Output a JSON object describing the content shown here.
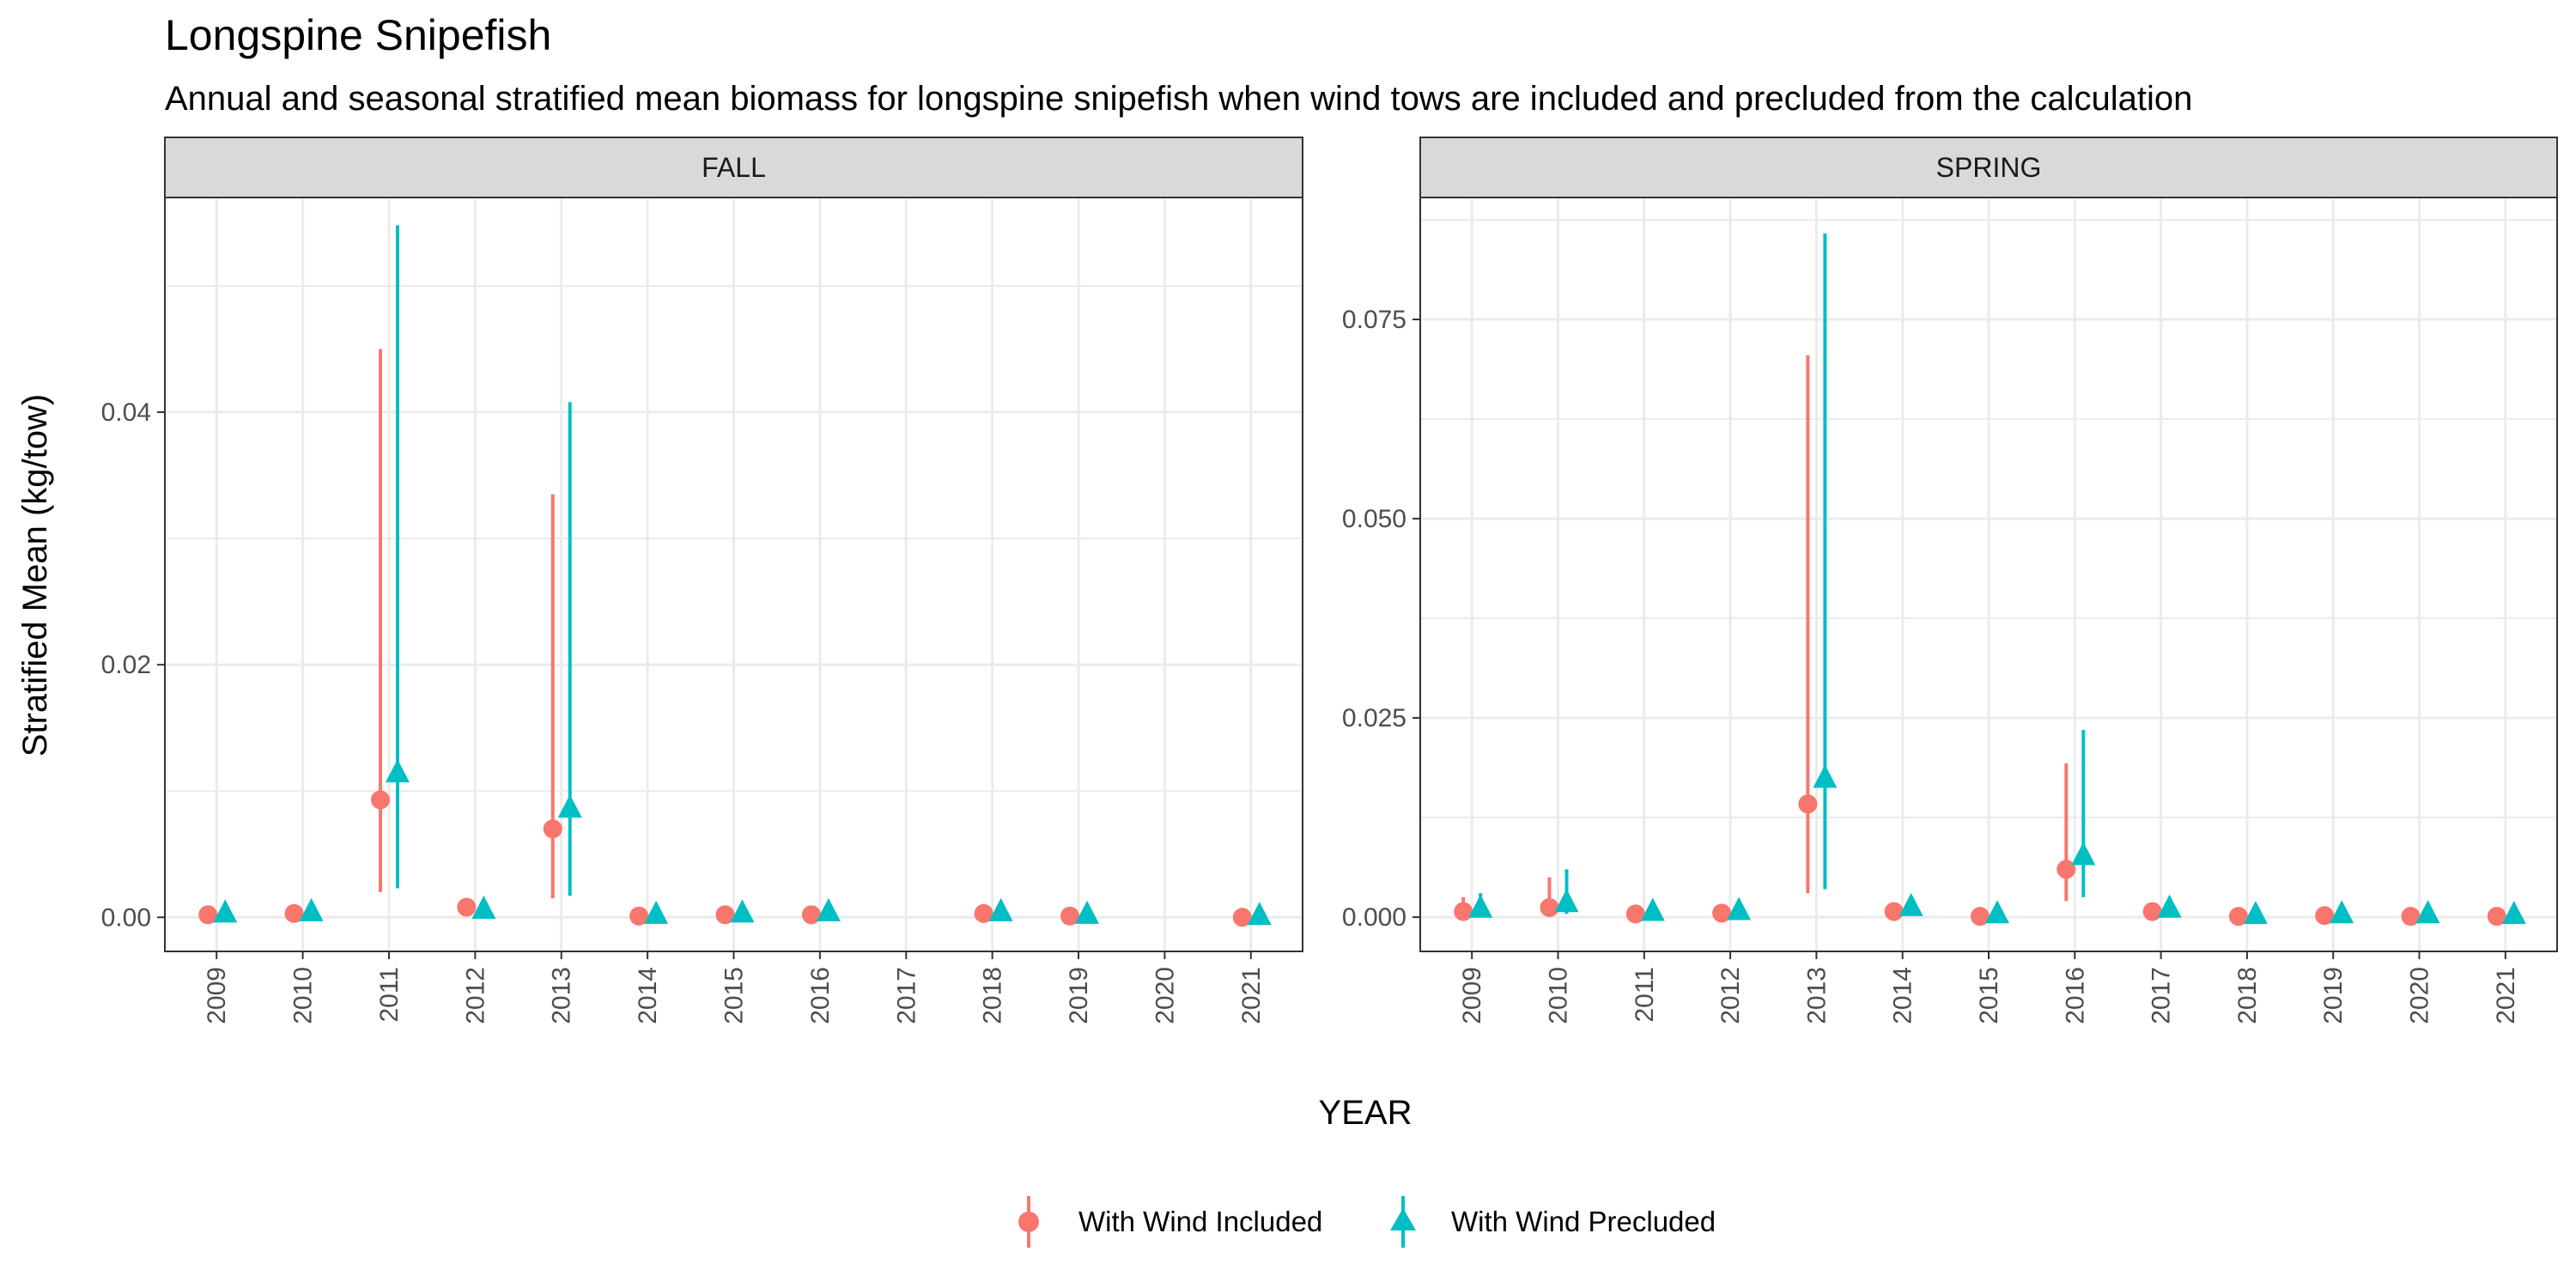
{
  "title": "Longspine Snipefish",
  "subtitle": "Annual and seasonal stratified mean biomass for longspine snipefish when wind tows are included and precluded from the calculation",
  "colors": {
    "included": "#F8766D",
    "precluded": "#00BFC4",
    "strip_fill": "#D9D9D9",
    "grid": "#EBEBEB"
  },
  "chart_data": [
    {
      "type": "scatter",
      "facet": "FALL",
      "xlabel": "YEAR",
      "ylabel": "Stratified Mean (kg/tow)",
      "categories": [
        "2009",
        "2010",
        "2011",
        "2012",
        "2013",
        "2014",
        "2015",
        "2016",
        "2017",
        "2018",
        "2019",
        "2020",
        "2021"
      ],
      "ylim": [
        -0.0027,
        0.057
      ],
      "yticks": [
        0.0,
        0.02,
        0.04
      ],
      "ytick_labels": [
        "0.00",
        "0.02",
        "0.04"
      ],
      "series": [
        {
          "name": "With Wind Included",
          "marker": "circle",
          "points": [
            {
              "x": "2009",
              "y": 0.0002,
              "lo": 0.0001,
              "hi": 0.0003
            },
            {
              "x": "2010",
              "y": 0.0003,
              "lo": 0.0002,
              "hi": 0.0004
            },
            {
              "x": "2011",
              "y": 0.0093,
              "lo": 0.002,
              "hi": 0.045
            },
            {
              "x": "2012",
              "y": 0.0008,
              "lo": 0.0005,
              "hi": 0.0011
            },
            {
              "x": "2013",
              "y": 0.007,
              "lo": 0.0015,
              "hi": 0.0335
            },
            {
              "x": "2014",
              "y": 0.0001,
              "lo": 0.0,
              "hi": 0.0002
            },
            {
              "x": "2015",
              "y": 0.0002,
              "lo": 0.0001,
              "hi": 0.0003
            },
            {
              "x": "2016",
              "y": 0.0002,
              "lo": 0.0001,
              "hi": 0.0003
            },
            {
              "x": "2018",
              "y": 0.0003,
              "lo": 0.0002,
              "hi": 0.0004
            },
            {
              "x": "2019",
              "y": 0.0001,
              "lo": 0.0,
              "hi": 0.0002
            },
            {
              "x": "2021",
              "y": 0.0,
              "lo": 0.0,
              "hi": 0.0001
            }
          ]
        },
        {
          "name": "With Wind Precluded",
          "marker": "triangle",
          "points": [
            {
              "x": "2009",
              "y": 0.0002,
              "lo": 0.0001,
              "hi": 0.0003
            },
            {
              "x": "2010",
              "y": 0.0003,
              "lo": 0.0002,
              "hi": 0.0004
            },
            {
              "x": "2011",
              "y": 0.0113,
              "lo": 0.0023,
              "hi": 0.0548
            },
            {
              "x": "2012",
              "y": 0.0005,
              "lo": 0.0003,
              "hi": 0.0007
            },
            {
              "x": "2013",
              "y": 0.0085,
              "lo": 0.0017,
              "hi": 0.0408
            },
            {
              "x": "2014",
              "y": 0.0001,
              "lo": 0.0,
              "hi": 0.0002
            },
            {
              "x": "2015",
              "y": 0.0002,
              "lo": 0.0001,
              "hi": 0.0003
            },
            {
              "x": "2016",
              "y": 0.0003,
              "lo": 0.0002,
              "hi": 0.0004
            },
            {
              "x": "2018",
              "y": 0.0003,
              "lo": 0.0002,
              "hi": 0.0004
            },
            {
              "x": "2019",
              "y": 0.0001,
              "lo": 0.0,
              "hi": 0.0002
            },
            {
              "x": "2021",
              "y": 0.0,
              "lo": 0.0,
              "hi": 0.0001
            }
          ]
        }
      ]
    },
    {
      "type": "scatter",
      "facet": "SPRING",
      "xlabel": "YEAR",
      "ylabel": "Stratified Mean (kg/tow)",
      "categories": [
        "2009",
        "2010",
        "2011",
        "2012",
        "2013",
        "2014",
        "2015",
        "2016",
        "2017",
        "2018",
        "2019",
        "2020",
        "2021"
      ],
      "ylim": [
        -0.0043,
        0.0903
      ],
      "yticks": [
        0.0,
        0.025,
        0.05,
        0.075
      ],
      "ytick_labels": [
        "0.000",
        "0.025",
        "0.050",
        "0.075"
      ],
      "series": [
        {
          "name": "With Wind Included",
          "marker": "circle",
          "points": [
            {
              "x": "2009",
              "y": 0.0007,
              "lo": 0.0002,
              "hi": 0.0025
            },
            {
              "x": "2010",
              "y": 0.0012,
              "lo": 0.0003,
              "hi": 0.005
            },
            {
              "x": "2011",
              "y": 0.0004,
              "lo": 0.0002,
              "hi": 0.0008
            },
            {
              "x": "2012",
              "y": 0.0005,
              "lo": 0.0002,
              "hi": 0.0009
            },
            {
              "x": "2013",
              "y": 0.0142,
              "lo": 0.003,
              "hi": 0.0705
            },
            {
              "x": "2014",
              "y": 0.0007,
              "lo": 0.0003,
              "hi": 0.0015
            },
            {
              "x": "2015",
              "y": 0.0001,
              "lo": 0.0,
              "hi": 0.0003
            },
            {
              "x": "2016",
              "y": 0.006,
              "lo": 0.002,
              "hi": 0.0193
            },
            {
              "x": "2017",
              "y": 0.0007,
              "lo": 0.0003,
              "hi": 0.0014
            },
            {
              "x": "2018",
              "y": 0.0001,
              "lo": 0.0,
              "hi": 0.0002
            },
            {
              "x": "2019",
              "y": 0.0002,
              "lo": 0.0001,
              "hi": 0.0003
            },
            {
              "x": "2020",
              "y": 0.0001,
              "lo": 0.0,
              "hi": 0.0002
            },
            {
              "x": "2021",
              "y": 0.0001,
              "lo": 0.0,
              "hi": 0.0002
            }
          ]
        },
        {
          "name": "With Wind Precluded",
          "marker": "triangle",
          "points": [
            {
              "x": "2009",
              "y": 0.0009,
              "lo": 0.0002,
              "hi": 0.003
            },
            {
              "x": "2010",
              "y": 0.0016,
              "lo": 0.0004,
              "hi": 0.006
            },
            {
              "x": "2011",
              "y": 0.0005,
              "lo": 0.0002,
              "hi": 0.0009
            },
            {
              "x": "2012",
              "y": 0.0006,
              "lo": 0.0002,
              "hi": 0.001
            },
            {
              "x": "2013",
              "y": 0.0172,
              "lo": 0.0035,
              "hi": 0.0858
            },
            {
              "x": "2014",
              "y": 0.0011,
              "lo": 0.0004,
              "hi": 0.0025
            },
            {
              "x": "2015",
              "y": 0.0002,
              "lo": 0.0,
              "hi": 0.0004
            },
            {
              "x": "2016",
              "y": 0.0075,
              "lo": 0.0025,
              "hi": 0.0235
            },
            {
              "x": "2017",
              "y": 0.0009,
              "lo": 0.0003,
              "hi": 0.0018
            },
            {
              "x": "2018",
              "y": 0.0001,
              "lo": 0.0,
              "hi": 0.0003
            },
            {
              "x": "2019",
              "y": 0.0002,
              "lo": 0.0001,
              "hi": 0.0003
            },
            {
              "x": "2020",
              "y": 0.0002,
              "lo": 0.0001,
              "hi": 0.0003
            },
            {
              "x": "2021",
              "y": 0.0001,
              "lo": 0.0,
              "hi": 0.0002
            }
          ]
        }
      ]
    }
  ],
  "legend": {
    "position": "bottom",
    "items": [
      {
        "label": "With Wind Included",
        "marker": "circle"
      },
      {
        "label": "With Wind Precluded",
        "marker": "triangle"
      }
    ]
  }
}
